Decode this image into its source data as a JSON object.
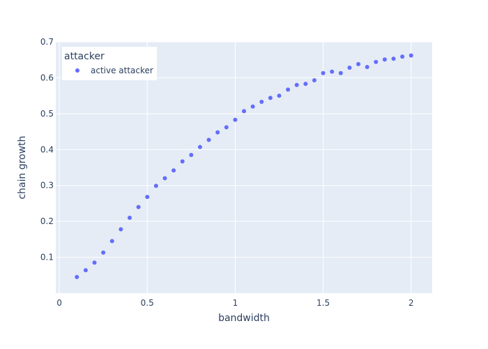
{
  "chart_data": {
    "type": "scatter",
    "xlabel": "bandwidth",
    "ylabel": "chain growth",
    "xlim": [
      -0.02,
      2.12
    ],
    "ylim": [
      0.0,
      0.7
    ],
    "xticks": [
      0,
      0.5,
      1,
      1.5,
      2
    ],
    "xtick_labels": [
      "0",
      "0.5",
      "1",
      "1.5",
      "2"
    ],
    "yticks": [
      0.1,
      0.2,
      0.3,
      0.4,
      0.5,
      0.6,
      0.7
    ],
    "ytick_labels": [
      "0.1",
      "0.2",
      "0.3",
      "0.4",
      "0.5",
      "0.6",
      "0.7"
    ],
    "grid": true,
    "legend": {
      "title": "attacker",
      "placement": "top-left"
    },
    "series": [
      {
        "name": "active attacker",
        "color": "#636efa",
        "x": [
          0.1,
          0.15,
          0.2,
          0.25,
          0.3,
          0.35,
          0.4,
          0.45,
          0.5,
          0.55,
          0.6,
          0.65,
          0.7,
          0.75,
          0.8,
          0.85,
          0.9,
          0.95,
          1.0,
          1.05,
          1.1,
          1.15,
          1.2,
          1.25,
          1.3,
          1.35,
          1.4,
          1.45,
          1.5,
          1.55,
          1.6,
          1.65,
          1.7,
          1.75,
          1.8,
          1.85,
          1.9,
          1.95,
          2.0
        ],
        "y": [
          0.045,
          0.064,
          0.085,
          0.113,
          0.145,
          0.178,
          0.21,
          0.24,
          0.268,
          0.299,
          0.32,
          0.342,
          0.367,
          0.385,
          0.407,
          0.427,
          0.448,
          0.462,
          0.483,
          0.507,
          0.52,
          0.533,
          0.544,
          0.55,
          0.567,
          0.58,
          0.583,
          0.593,
          0.613,
          0.617,
          0.613,
          0.628,
          0.638,
          0.63,
          0.644,
          0.651,
          0.653,
          0.659,
          0.662
        ]
      }
    ]
  }
}
